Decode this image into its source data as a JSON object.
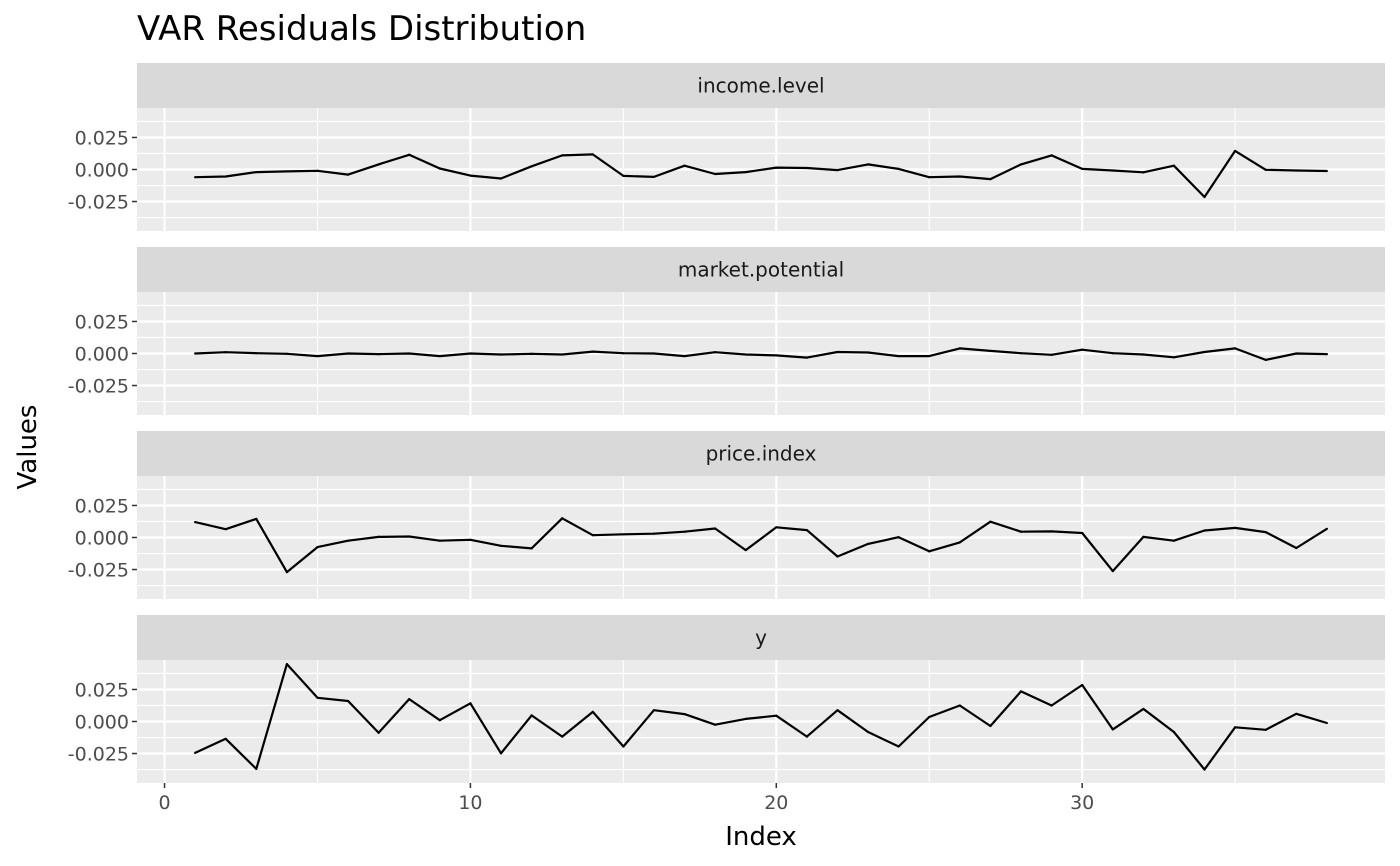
{
  "chart_data": {
    "type": "line",
    "title": "VAR Residuals Distribution",
    "xlabel": "Index",
    "ylabel": "Values",
    "xlim": [
      -0.9,
      39.9
    ],
    "ylim": [
      -0.048,
      0.048
    ],
    "x_ticks": [
      0,
      10,
      20,
      30
    ],
    "x_tick_labels": [
      "0",
      "10",
      "20",
      "30"
    ],
    "y_ticks": [
      0.025,
      0.0,
      -0.025
    ],
    "y_tick_labels": [
      "0.025",
      "0.000",
      "-0.025"
    ],
    "grid": true,
    "facet_layout": "stacked vertically, shared x axis",
    "colors": {
      "panel_background": "#ebebeb",
      "strip_background": "#d9d9d9",
      "grid_line": "#ffffff",
      "series_line": "#000000",
      "tick_text": "#4d4d4d"
    },
    "x": [
      1,
      2,
      3,
      4,
      5,
      6,
      7,
      8,
      9,
      10,
      11,
      12,
      13,
      14,
      15,
      16,
      17,
      18,
      19,
      20,
      21,
      22,
      23,
      24,
      25,
      26,
      27,
      28,
      29,
      30,
      31,
      32,
      33,
      34,
      35,
      36,
      37,
      38
    ],
    "panels": [
      {
        "name": "income.level",
        "values": [
          -0.006,
          -0.0055,
          -0.002,
          -0.0015,
          -0.001,
          -0.004,
          0.004,
          0.0115,
          0.0008,
          -0.0048,
          -0.007,
          0.0025,
          0.011,
          0.0118,
          -0.005,
          -0.0058,
          0.003,
          -0.0035,
          -0.002,
          0.0015,
          0.0012,
          -0.0005,
          0.004,
          0.0005,
          -0.006,
          -0.0055,
          -0.0075,
          0.004,
          0.011,
          0.0005,
          -0.0008,
          -0.0022,
          0.003,
          -0.0215,
          0.0145,
          -0.0002,
          -0.0008,
          -0.0012
        ]
      },
      {
        "name": "market.potential",
        "values": [
          0.0,
          0.001,
          0.0002,
          -0.0002,
          -0.002,
          0.0,
          -0.0005,
          0.0,
          -0.002,
          0.0,
          -0.0008,
          -0.0002,
          -0.0008,
          0.0015,
          0.0002,
          0.0,
          -0.002,
          0.001,
          -0.0008,
          -0.0015,
          -0.0032,
          0.0012,
          0.0008,
          -0.002,
          -0.002,
          0.004,
          0.002,
          0.0002,
          -0.001,
          0.003,
          0.0002,
          -0.0008,
          -0.003,
          0.0012,
          0.004,
          -0.005,
          0.0,
          -0.0005
        ]
      },
      {
        "name": "price.index",
        "values": [
          0.012,
          0.0065,
          0.0145,
          -0.027,
          -0.0075,
          -0.0025,
          0.0005,
          0.0008,
          -0.0025,
          -0.0018,
          -0.0065,
          -0.0085,
          0.015,
          0.0018,
          0.0025,
          0.003,
          0.0045,
          0.007,
          -0.0098,
          0.008,
          0.0058,
          -0.0148,
          -0.005,
          0.0002,
          -0.0108,
          -0.0038,
          0.0123,
          0.0045,
          0.0048,
          0.0035,
          -0.0262,
          0.0005,
          -0.0025,
          0.0055,
          0.0075,
          0.0042,
          -0.0082,
          0.0068
        ]
      },
      {
        "name": "y",
        "values": [
          -0.0245,
          -0.0135,
          -0.037,
          0.0448,
          0.0185,
          0.016,
          -0.0088,
          0.0175,
          0.001,
          0.0142,
          -0.0248,
          0.0048,
          -0.0118,
          0.0075,
          -0.0195,
          0.0088,
          0.0058,
          -0.0025,
          0.002,
          0.0045,
          -0.0118,
          0.0088,
          -0.0082,
          -0.0195,
          0.0035,
          0.0125,
          -0.0035,
          0.0235,
          0.0125,
          0.0285,
          -0.0062,
          0.0098,
          -0.0082,
          -0.0375,
          -0.0045,
          -0.0065,
          0.006,
          -0.0012
        ]
      }
    ]
  }
}
